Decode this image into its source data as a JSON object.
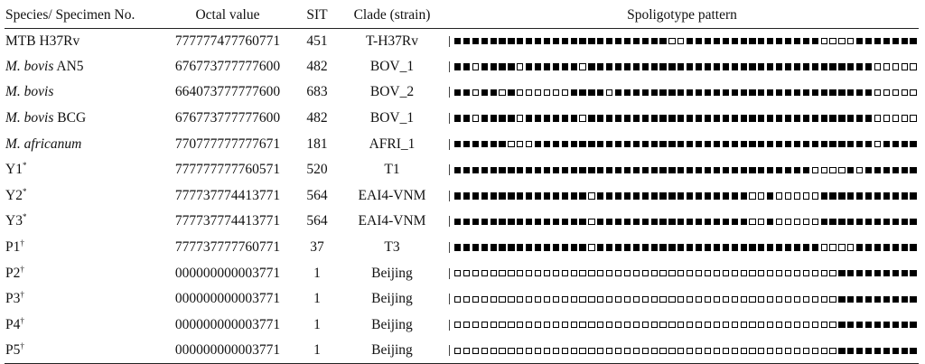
{
  "headers": [
    "Species/ Specimen No.",
    "Octal value",
    "SIT",
    "Clade (strain)",
    "Spoligotype pattern"
  ],
  "rows": [
    {
      "pre": "",
      "it": "",
      "rest": "MTB H37Rv",
      "sup": "",
      "octal": "777777477760771",
      "sit": "451",
      "clade": "T-H37Rv",
      "pattern": "1111111111111111111111110011111111111111100001111111"
    },
    {
      "pre": "",
      "it": "M. bovis",
      "rest": " AN5",
      "sup": "",
      "octal": "676773777777600",
      "sit": "482",
      "clade": "BOV_1",
      "pattern": "1101111011111101111111111111111111111111111111100000"
    },
    {
      "pre": "",
      "it": "M. bovis",
      "rest": "",
      "sup": "",
      "octal": "664073777777600",
      "sit": "683",
      "clade": "BOV_2",
      "pattern": "1101101000000111101111111111111111111111111111100000"
    },
    {
      "pre": "",
      "it": "M. bovis",
      "rest": " BCG",
      "sup": "",
      "octal": "676773777777600",
      "sit": "482",
      "clade": "BOV_1",
      "pattern": "1101111011111101111111111111111111111111111111100000"
    },
    {
      "pre": "",
      "it": "M. africanum",
      "rest": "",
      "sup": "",
      "octal": "770777777777671",
      "sit": "181",
      "clade": "AFRI_1",
      "pattern": "1111110001111111111111111111111111111111111111101111"
    },
    {
      "pre": "",
      "it": "",
      "rest": "Y1",
      "sup": "*",
      "octal": "777777777760571",
      "sit": "520",
      "clade": "T1",
      "pattern": "1111111111111111111111111111111111111111000010111111"
    },
    {
      "pre": "",
      "it": "",
      "rest": "Y2",
      "sup": "*",
      "octal": "777737774413771",
      "sit": "564",
      "clade": "EAI4-VNM",
      "pattern": "1111111111111110111111111111111110010000011111111111"
    },
    {
      "pre": "",
      "it": "",
      "rest": "Y3",
      "sup": "*",
      "octal": "777737774413771",
      "sit": "564",
      "clade": "EAI4-VNM",
      "pattern": "1111111111111110111111111111111110010000011111111111"
    },
    {
      "pre": "",
      "it": "",
      "rest": "P1",
      "sup": "†",
      "octal": "777737777760771",
      "sit": "37",
      "clade": "T3",
      "pattern": "1111111111111110111111111111111111111111100001111111"
    },
    {
      "pre": "",
      "it": "",
      "rest": "P2",
      "sup": "†",
      "octal": "000000000003771",
      "sit": "1",
      "clade": "Beijing",
      "pattern": "0000000000000000000000000000000000000000000111111111"
    },
    {
      "pre": "",
      "it": "",
      "rest": "P3",
      "sup": "†",
      "octal": "000000000003771",
      "sit": "1",
      "clade": "Beijing",
      "pattern": "0000000000000000000000000000000000000000000111111111"
    },
    {
      "pre": "",
      "it": "",
      "rest": "P4",
      "sup": "†",
      "octal": "000000000003771",
      "sit": "1",
      "clade": "Beijing",
      "pattern": "0000000000000000000000000000000000000000000111111111"
    },
    {
      "pre": "",
      "it": "",
      "rest": "P5",
      "sup": "†",
      "octal": "000000000003771",
      "sit": "1",
      "clade": "Beijing",
      "pattern": "0000000000000000000000000000000000000000000111111111"
    }
  ]
}
